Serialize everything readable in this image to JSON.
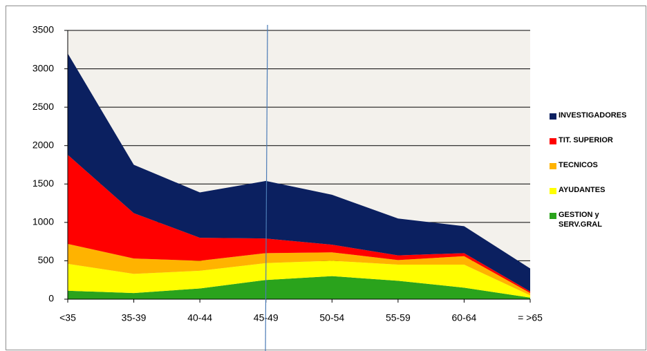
{
  "chart_data": {
    "type": "stacked-area",
    "categories": [
      "<35",
      "35-39",
      "40-44",
      "45-49",
      "50-54",
      "55-59",
      "60-64",
      "= >65"
    ],
    "series": [
      {
        "name": "GESTION y SERV.GRAL",
        "color": "#2aa31c",
        "values": [
          110,
          80,
          140,
          250,
          300,
          240,
          150,
          20
        ]
      },
      {
        "name": "AYUDANTES",
        "color": "#ffff00",
        "values": [
          350,
          250,
          230,
          220,
          200,
          210,
          300,
          30
        ]
      },
      {
        "name": "TECNICOS",
        "color": "#ffb300",
        "values": [
          260,
          200,
          130,
          130,
          110,
          60,
          110,
          30
        ]
      },
      {
        "name": "TIT. SUPERIOR",
        "color": "#ff0000",
        "values": [
          1160,
          590,
          300,
          190,
          100,
          60,
          40,
          20
        ]
      },
      {
        "name": "INVESTIGADORES",
        "color": "#0b2060",
        "values": [
          1320,
          630,
          590,
          750,
          650,
          480,
          350,
          300
        ]
      }
    ],
    "ylim": [
      0,
      3500
    ],
    "yticks": [
      0,
      500,
      1000,
      1500,
      2000,
      2500,
      3000,
      3500
    ],
    "grid": true
  }
}
